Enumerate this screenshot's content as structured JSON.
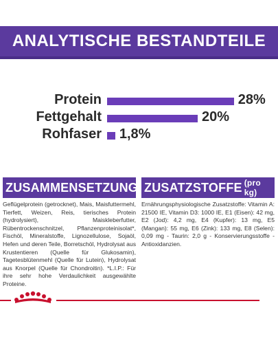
{
  "header": {
    "title": "ANALYTISCHE BESTANDTEILE"
  },
  "nutrients": [
    {
      "label": "Protein",
      "value": "28%",
      "percent": 28
    },
    {
      "label": "Fettgehalt",
      "value": "20%",
      "percent": 20
    },
    {
      "label": "Rohfaser",
      "value": "1,8%",
      "percent": 1.8
    }
  ],
  "composition": {
    "title": "ZUSAMMENSETZUNG",
    "text": "Geflügelprotein (getrocknet), Mais, Maisfuttermehl, Tierfett, Weizen, Reis, tierisches Protein (hydrolysiert), Maiskleberfutter, Rübentrockenschnitzel, Pflanzenproteinisolat*, Fischöl, Mineralstoffe, Lignozellulose, Sojaöl, Hefen und deren Teile, Borretschöl, Hydrolysat aus Krustentieren (Quelle für Glukosamin), Tagetesblütenmehl (Quelle für Lutein), Hydrolysat aus Knorpel (Quelle für Chondroitin). *L.I.P.: Für ihre sehr hohe Verdaulichkeit ausgewählte Proteine."
  },
  "additives": {
    "title": "ZUSATZSTOFFE",
    "unit": "(pro kg)",
    "text": "Ernährungsphysiologische Zusatzstoffe: Vitamin A: 21500 IE, Vitamin D3: 1000 IE, E1 (Eisen): 42 mg, E2 (Jod): 4,2 mg, E4 (Kupfer): 13 mg, E5 (Mangan): 55 mg, E6 (Zink): 133 mg, E8 (Selen): 0,09 mg - Taurin: 2,0 g - Konservierungsstoffe - Antioxidanzien."
  },
  "colors": {
    "accent": "#5b3a9e",
    "bar": "#6a3db8",
    "brand_red": "#c8102e"
  },
  "logo": {
    "icon": "royal-canin-crown-icon"
  }
}
